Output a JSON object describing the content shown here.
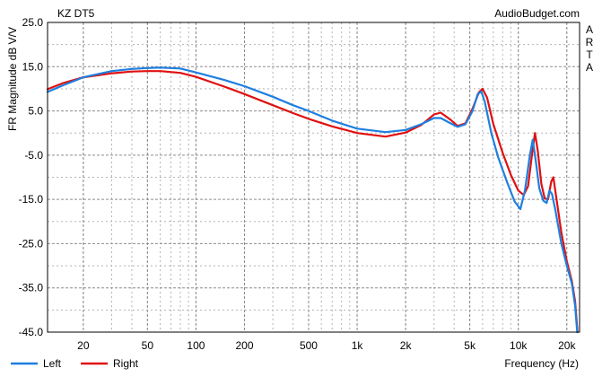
{
  "chart_data": {
    "type": "line",
    "title": "KZ DT5",
    "watermark": "AudioBudget.com",
    "side_label": "ARTA",
    "xlabel": "Frequency (Hz)",
    "ylabel": "FR Magnitude dB V/V",
    "x_scale": "log",
    "xlim": [
      12,
      24000
    ],
    "ylim": [
      -45,
      25
    ],
    "x_ticks": [
      {
        "value": 20,
        "label": "20"
      },
      {
        "value": 50,
        "label": "50"
      },
      {
        "value": 100,
        "label": "100"
      },
      {
        "value": 200,
        "label": "200"
      },
      {
        "value": 500,
        "label": "500"
      },
      {
        "value": 1000,
        "label": "1k"
      },
      {
        "value": 2000,
        "label": "2k"
      },
      {
        "value": 5000,
        "label": "5k"
      },
      {
        "value": 10000,
        "label": "10k"
      },
      {
        "value": 20000,
        "label": "20k"
      }
    ],
    "y_ticks": [
      {
        "value": 25,
        "label": "25.0"
      },
      {
        "value": 15,
        "label": "15.0"
      },
      {
        "value": 5,
        "label": "5.0"
      },
      {
        "value": -5,
        "label": "-5.0"
      },
      {
        "value": -15,
        "label": "-15.0"
      },
      {
        "value": -25,
        "label": "-25.0"
      },
      {
        "value": -35,
        "label": "-35.0"
      },
      {
        "value": -45,
        "label": "-45.0"
      }
    ],
    "grid": true,
    "legend_position": "bottom-left",
    "series": [
      {
        "name": "Left",
        "color": "#1e7fe0",
        "points": [
          [
            12,
            9.3
          ],
          [
            15,
            10.8
          ],
          [
            20,
            12.6
          ],
          [
            30,
            14.0
          ],
          [
            40,
            14.5
          ],
          [
            50,
            14.7
          ],
          [
            60,
            14.8
          ],
          [
            80,
            14.6
          ],
          [
            100,
            13.7
          ],
          [
            150,
            12.0
          ],
          [
            200,
            10.6
          ],
          [
            300,
            8.2
          ],
          [
            400,
            6.3
          ],
          [
            500,
            5.0
          ],
          [
            700,
            2.8
          ],
          [
            1000,
            1.0
          ],
          [
            1500,
            0.2
          ],
          [
            2000,
            0.7
          ],
          [
            2500,
            2.0
          ],
          [
            3000,
            3.4
          ],
          [
            3300,
            3.4
          ],
          [
            3800,
            2.2
          ],
          [
            4200,
            1.4
          ],
          [
            4700,
            2.0
          ],
          [
            5200,
            5.0
          ],
          [
            5600,
            8.8
          ],
          [
            5900,
            9.4
          ],
          [
            6200,
            7.0
          ],
          [
            6800,
            0
          ],
          [
            7500,
            -5.5
          ],
          [
            8500,
            -11.0
          ],
          [
            9500,
            -15.5
          ],
          [
            10300,
            -17.2
          ],
          [
            11000,
            -13.0
          ],
          [
            11800,
            -5.0
          ],
          [
            12300,
            -1.5
          ],
          [
            12800,
            -6.0
          ],
          [
            13500,
            -12.5
          ],
          [
            14300,
            -15.3
          ],
          [
            15000,
            -15.8
          ],
          [
            15600,
            -13.0
          ],
          [
            16200,
            -13.8
          ],
          [
            17000,
            -17.5
          ],
          [
            18500,
            -25.0
          ],
          [
            20000,
            -30.0
          ],
          [
            21500,
            -34.0
          ],
          [
            22500,
            -39.0
          ],
          [
            23200,
            -45.0
          ]
        ]
      },
      {
        "name": "Right",
        "color": "#e01010",
        "points": [
          [
            12,
            9.9
          ],
          [
            15,
            11.3
          ],
          [
            20,
            12.6
          ],
          [
            30,
            13.5
          ],
          [
            40,
            13.9
          ],
          [
            50,
            14.0
          ],
          [
            60,
            14.0
          ],
          [
            80,
            13.6
          ],
          [
            100,
            12.7
          ],
          [
            150,
            10.5
          ],
          [
            200,
            8.8
          ],
          [
            300,
            6.3
          ],
          [
            400,
            4.5
          ],
          [
            500,
            3.2
          ],
          [
            700,
            1.5
          ],
          [
            1000,
            0
          ],
          [
            1500,
            -0.8
          ],
          [
            2000,
            0.1
          ],
          [
            2500,
            1.8
          ],
          [
            3000,
            4.2
          ],
          [
            3300,
            4.6
          ],
          [
            3800,
            3.0
          ],
          [
            4200,
            1.6
          ],
          [
            4700,
            2.2
          ],
          [
            5200,
            5.5
          ],
          [
            5700,
            9.2
          ],
          [
            6000,
            10.0
          ],
          [
            6400,
            8.0
          ],
          [
            7000,
            2.0
          ],
          [
            8000,
            -4.5
          ],
          [
            9000,
            -9.5
          ],
          [
            10000,
            -13.0
          ],
          [
            10800,
            -14.0
          ],
          [
            11500,
            -12.0
          ],
          [
            12200,
            -4.5
          ],
          [
            12700,
            0
          ],
          [
            13200,
            -4.0
          ],
          [
            13900,
            -11.5
          ],
          [
            14600,
            -14.8
          ],
          [
            15300,
            -15.0
          ],
          [
            16000,
            -11.0
          ],
          [
            16500,
            -10.0
          ],
          [
            17200,
            -14.5
          ],
          [
            18500,
            -22.5
          ],
          [
            20000,
            -29.0
          ],
          [
            21500,
            -33.5
          ],
          [
            22500,
            -38.0
          ],
          [
            23300,
            -45.0
          ]
        ]
      }
    ]
  }
}
